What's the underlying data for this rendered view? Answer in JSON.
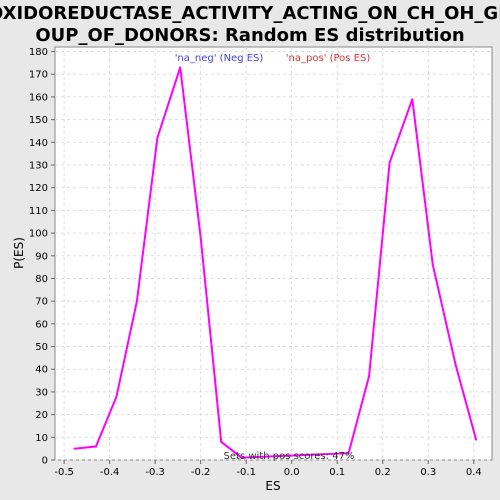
{
  "chart_data": {
    "type": "line",
    "title_lines": [
      "OXIDOREDUCTASE_ACTIVITY_ACTING_ON_CH_OH_GR",
      "OUP_OF_DONORS: Random ES distribution"
    ],
    "xlabel": "ES",
    "ylabel": "P(ES)",
    "xlim": [
      -0.52,
      0.44
    ],
    "ylim": [
      0,
      182
    ],
    "x_ticks": [
      -0.5,
      -0.4,
      -0.3,
      -0.2,
      -0.1,
      0.0,
      0.1,
      0.2,
      0.3,
      0.4
    ],
    "x_tick_labels": [
      "-0.5",
      "-0.4",
      "-0.3",
      "-0.2",
      "-0.1",
      "0.0",
      "0.1",
      "0.2",
      "0.3",
      "0.4"
    ],
    "y_ticks": [
      0,
      10,
      20,
      30,
      40,
      50,
      60,
      70,
      80,
      90,
      100,
      110,
      120,
      130,
      140,
      150,
      160,
      170,
      180
    ],
    "y_tick_labels": [
      "0",
      "10",
      "20",
      "30",
      "40",
      "50",
      "60",
      "70",
      "80",
      "90",
      "100",
      "110",
      "120",
      "130",
      "140",
      "150",
      "160",
      "170",
      "180"
    ],
    "grid": true,
    "series": [
      {
        "name": "Random ES",
        "color": "#ff00ff",
        "x": [
          -0.477,
          -0.43,
          -0.385,
          -0.34,
          -0.295,
          -0.245,
          -0.2,
          -0.155,
          -0.11,
          0.125,
          0.17,
          0.215,
          0.265,
          0.31,
          0.36,
          0.405
        ],
        "y": [
          5,
          6,
          28,
          70,
          142,
          173,
          98,
          8,
          1,
          3,
          37,
          131,
          159,
          86,
          42,
          9
        ]
      }
    ],
    "legend": [
      {
        "label": "'na_neg' (Neg ES)",
        "color": "#4444dd"
      },
      {
        "label": "'na_pos' (Pos ES)",
        "color": "#dd3333"
      }
    ],
    "annotation": "Sets with pos scores: 47%"
  }
}
